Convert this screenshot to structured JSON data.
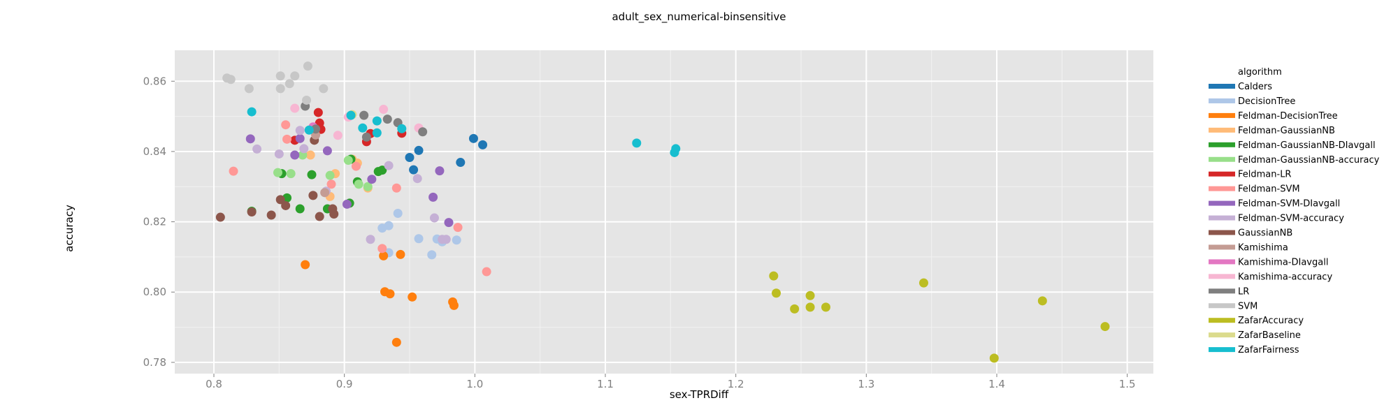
{
  "chart_data": {
    "type": "scatter",
    "title": "adult_sex_numerical-binsensitive",
    "xlabel": "sex-TPRDiff",
    "ylabel": "accuracy",
    "xlim": [
      0.77,
      1.52
    ],
    "ylim": [
      0.7768,
      0.8688
    ],
    "x_ticks": [
      0.8,
      0.9,
      1.0,
      1.1,
      1.2,
      1.3,
      1.4,
      1.5
    ],
    "x_tick_labels": [
      "0.8",
      "0.9",
      "1.0",
      "1.1",
      "1.2",
      "1.3",
      "1.4",
      "1.5"
    ],
    "y_ticks": [
      0.78,
      0.8,
      0.82,
      0.84,
      0.86
    ],
    "y_tick_labels": [
      "0.78",
      "0.80",
      "0.82",
      "0.84",
      "0.86"
    ],
    "grid": true,
    "background": "#e5e5e5",
    "legend": {
      "title": "algorithm",
      "position": "right"
    },
    "series": [
      {
        "name": "Calders",
        "color": "#1f77b4",
        "points": [
          [
            0.999,
            0.8437
          ],
          [
            1.006,
            0.8419
          ],
          [
            0.957,
            0.8403
          ],
          [
            0.95,
            0.8383
          ],
          [
            0.989,
            0.8369
          ],
          [
            0.953,
            0.8348
          ]
        ]
      },
      {
        "name": "DecisionTree",
        "color": "#aec7e8",
        "points": [
          [
            0.941,
            0.8224
          ],
          [
            0.934,
            0.8189
          ],
          [
            0.929,
            0.8182
          ],
          [
            0.957,
            0.8152
          ],
          [
            0.971,
            0.8151
          ],
          [
            0.975,
            0.8143
          ],
          [
            0.986,
            0.8148
          ],
          [
            0.967,
            0.8106
          ],
          [
            0.934,
            0.8112
          ]
        ]
      },
      {
        "name": "Feldman-DecisionTree",
        "color": "#ff7f0e",
        "points": [
          [
            0.87,
            0.8078
          ],
          [
            0.93,
            0.8103
          ],
          [
            0.943,
            0.8107
          ],
          [
            0.931,
            0.8001
          ],
          [
            0.935,
            0.7995
          ],
          [
            0.952,
            0.7986
          ],
          [
            0.983,
            0.7972
          ],
          [
            0.984,
            0.7962
          ],
          [
            0.94,
            0.7857
          ]
        ]
      },
      {
        "name": "Feldman-GaussianNB",
        "color": "#ffbb78",
        "points": [
          [
            0.874,
            0.839
          ],
          [
            0.906,
            0.8378
          ],
          [
            0.893,
            0.8337
          ],
          [
            0.918,
            0.8296
          ],
          [
            0.91,
            0.8367
          ],
          [
            0.889,
            0.8272
          ]
        ]
      },
      {
        "name": "Feldman-GaussianNB-DIavgall",
        "color": "#2ca02c",
        "points": [
          [
            0.852,
            0.8337
          ],
          [
            0.875,
            0.8334
          ],
          [
            0.905,
            0.8378
          ],
          [
            0.929,
            0.8347
          ],
          [
            0.926,
            0.8343
          ],
          [
            0.856,
            0.8268
          ],
          [
            0.866,
            0.8237
          ],
          [
            0.887,
            0.8237
          ],
          [
            0.904,
            0.8253
          ],
          [
            0.91,
            0.8314
          ],
          [
            0.829,
            0.823
          ]
        ]
      },
      {
        "name": "Feldman-GaussianNB-accuracy",
        "color": "#98df8a",
        "points": [
          [
            0.849,
            0.834
          ],
          [
            0.859,
            0.8337
          ],
          [
            0.868,
            0.839
          ],
          [
            0.889,
            0.8332
          ],
          [
            0.903,
            0.8375
          ],
          [
            0.911,
            0.8307
          ],
          [
            0.918,
            0.83
          ]
        ]
      },
      {
        "name": "Feldman-LR",
        "color": "#d62728",
        "points": [
          [
            0.88,
            0.8511
          ],
          [
            0.881,
            0.8481
          ],
          [
            0.876,
            0.8463
          ],
          [
            0.882,
            0.8463
          ],
          [
            0.862,
            0.8432
          ],
          [
            0.917,
            0.8428
          ],
          [
            0.944,
            0.8452
          ],
          [
            0.92,
            0.8451
          ]
        ]
      },
      {
        "name": "Feldman-SVM",
        "color": "#ff9896",
        "points": [
          [
            0.815,
            0.8344
          ],
          [
            0.855,
            0.8476
          ],
          [
            0.856,
            0.8435
          ],
          [
            0.909,
            0.8358
          ],
          [
            0.94,
            0.8296
          ],
          [
            0.89,
            0.8307
          ],
          [
            0.987,
            0.8184
          ],
          [
            0.929,
            0.8124
          ],
          [
            1.009,
            0.8058
          ]
        ]
      },
      {
        "name": "Feldman-SVM-DIavgall",
        "color": "#9467bd",
        "points": [
          [
            0.828,
            0.8436
          ],
          [
            0.866,
            0.8437
          ],
          [
            0.862,
            0.839
          ],
          [
            0.887,
            0.8402
          ],
          [
            0.921,
            0.8321
          ],
          [
            0.973,
            0.8345
          ],
          [
            0.968,
            0.827
          ],
          [
            0.98,
            0.8198
          ],
          [
            0.902,
            0.825
          ]
        ]
      },
      {
        "name": "Feldman-SVM-accuracy",
        "color": "#c5b0d5",
        "points": [
          [
            0.833,
            0.8407
          ],
          [
            0.85,
            0.8393
          ],
          [
            0.866,
            0.846
          ],
          [
            0.869,
            0.8408
          ],
          [
            0.886,
            0.8287
          ],
          [
            0.934,
            0.836
          ],
          [
            0.956,
            0.8323
          ],
          [
            0.969,
            0.8211
          ],
          [
            0.92,
            0.815
          ],
          [
            0.978,
            0.815
          ],
          [
            0.975,
            0.815
          ]
        ]
      },
      {
        "name": "GaussianNB",
        "color": "#8c564b",
        "points": [
          [
            0.805,
            0.8213
          ],
          [
            0.829,
            0.8228
          ],
          [
            0.844,
            0.8219
          ],
          [
            0.851,
            0.8263
          ],
          [
            0.855,
            0.8246
          ],
          [
            0.876,
            0.8275
          ],
          [
            0.881,
            0.8215
          ],
          [
            0.891,
            0.8237
          ],
          [
            0.892,
            0.8222
          ],
          [
            0.877,
            0.8432
          ]
        ]
      },
      {
        "name": "Kamishima",
        "color": "#c49c94",
        "points": [
          [
            0.878,
            0.8447
          ],
          [
            0.885,
            0.8283
          ]
        ]
      },
      {
        "name": "Kamishima-DIavgall",
        "color": "#e377c2",
        "points": [
          [
            0.876,
            0.847
          ]
        ]
      },
      {
        "name": "Kamishima-accuracy",
        "color": "#f7b6d2",
        "points": [
          [
            0.862,
            0.8523
          ],
          [
            0.93,
            0.852
          ],
          [
            0.957,
            0.8467
          ],
          [
            0.903,
            0.8498
          ],
          [
            0.895,
            0.8446
          ]
        ]
      },
      {
        "name": "LR",
        "color": "#7f7f7f",
        "points": [
          [
            0.87,
            0.8529
          ],
          [
            0.878,
            0.8464
          ],
          [
            0.915,
            0.8503
          ],
          [
            0.933,
            0.8492
          ],
          [
            0.941,
            0.8482
          ],
          [
            0.96,
            0.8456
          ],
          [
            0.917,
            0.8441
          ]
        ]
      },
      {
        "name": "SVM",
        "color": "#c7c7c7",
        "points": [
          [
            0.81,
            0.8609
          ],
          [
            0.813,
            0.8605
          ],
          [
            0.827,
            0.8579
          ],
          [
            0.851,
            0.8615
          ],
          [
            0.851,
            0.8579
          ],
          [
            0.858,
            0.8593
          ],
          [
            0.862,
            0.8615
          ],
          [
            0.872,
            0.8643
          ],
          [
            0.871,
            0.8546
          ],
          [
            0.884,
            0.8579
          ]
        ]
      },
      {
        "name": "ZafarAccuracy",
        "color": "#bcbd22",
        "points": [
          [
            1.229,
            0.8046
          ],
          [
            1.231,
            0.7997
          ],
          [
            1.257,
            0.799
          ],
          [
            1.245,
            0.7952
          ],
          [
            1.257,
            0.7957
          ],
          [
            1.269,
            0.7957
          ],
          [
            1.344,
            0.8026
          ],
          [
            1.435,
            0.7975
          ],
          [
            1.483,
            0.7902
          ],
          [
            1.398,
            0.7812
          ]
        ]
      },
      {
        "name": "ZafarBaseline",
        "color": "#dbdb8d",
        "points": [
          [
            0.906,
            0.8505
          ]
        ]
      },
      {
        "name": "ZafarFairness",
        "color": "#17becf",
        "points": [
          [
            0.829,
            0.8513
          ],
          [
            0.873,
            0.8461
          ],
          [
            0.905,
            0.8503
          ],
          [
            0.914,
            0.8467
          ],
          [
            0.925,
            0.8487
          ],
          [
            0.925,
            0.8453
          ],
          [
            0.944,
            0.8465
          ],
          [
            1.124,
            0.8424
          ],
          [
            1.154,
            0.8408
          ],
          [
            1.153,
            0.8397
          ]
        ]
      }
    ]
  }
}
